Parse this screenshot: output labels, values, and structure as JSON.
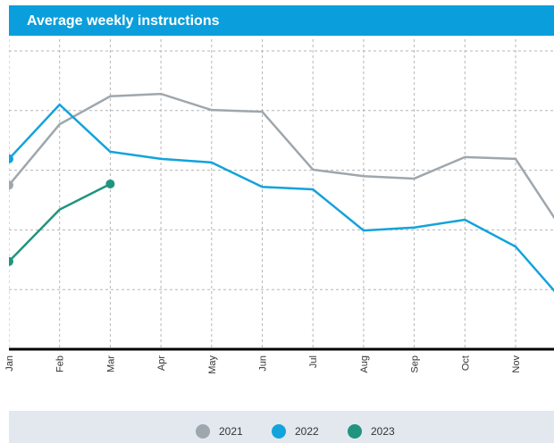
{
  "chart_data": {
    "type": "line",
    "title": "Average weekly instructions",
    "categories": [
      "Jan",
      "Feb",
      "Mar",
      "Apr",
      "May",
      "Jun",
      "Jul",
      "Aug",
      "Sep",
      "Oct",
      "Nov",
      null
    ],
    "series": [
      {
        "name": "2021",
        "color": "#9ea7ad",
        "values": [
          2.75,
          3.77,
          4.24,
          4.28,
          4.01,
          3.98,
          3.01,
          2.9,
          2.86,
          3.22,
          3.19,
          1.9
        ]
      },
      {
        "name": "2022",
        "color": "#12a3dc",
        "values": [
          3.19,
          4.1,
          3.31,
          3.19,
          3.13,
          2.72,
          2.68,
          1.99,
          2.04,
          2.17,
          1.72,
          0.75
        ]
      },
      {
        "name": "2023",
        "color": "#21947f",
        "values": [
          1.47,
          2.34,
          2.77,
          null,
          null,
          null,
          null,
          null,
          null,
          null,
          null,
          null
        ]
      }
    ],
    "ylim": [
      0,
      5
    ],
    "yticks": [
      0,
      1,
      2,
      3,
      4,
      5
    ],
    "grid": true,
    "legend": "bottom"
  }
}
